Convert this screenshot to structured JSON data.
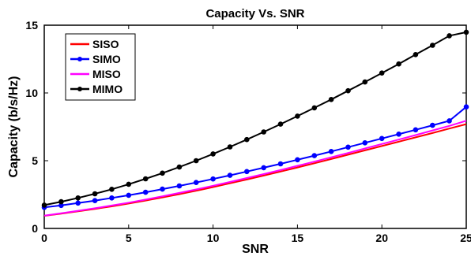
{
  "chart_data": {
    "type": "line",
    "title": "Capacity Vs. SNR",
    "xlabel": "SNR",
    "ylabel": "Capacity (b/s/Hz)",
    "xlim": [
      0,
      25
    ],
    "ylim": [
      0,
      15
    ],
    "xticks": [
      0,
      5,
      10,
      15,
      20,
      25
    ],
    "yticks": [
      0,
      5,
      10,
      15
    ],
    "legend_position": "top-left",
    "grid": false,
    "x": [
      0,
      1,
      2,
      3,
      4,
      5,
      6,
      7,
      8,
      9,
      10,
      11,
      12,
      13,
      14,
      15,
      16,
      17,
      18,
      19,
      20,
      21,
      22,
      23,
      24,
      25
    ],
    "series": [
      {
        "name": "SISO",
        "color": "#ff0000",
        "marker": "none",
        "values": [
          0.93,
          1.09,
          1.26,
          1.44,
          1.63,
          1.84,
          2.06,
          2.29,
          2.53,
          2.78,
          3.05,
          3.33,
          3.61,
          3.9,
          4.2,
          4.5,
          4.81,
          5.12,
          5.44,
          5.76,
          6.08,
          6.4,
          6.72,
          7.04,
          7.37,
          7.7
        ]
      },
      {
        "name": "SIMO",
        "color": "#0000ff",
        "marker": "circle",
        "values": [
          1.55,
          1.7,
          1.87,
          2.05,
          2.25,
          2.45,
          2.67,
          2.9,
          3.14,
          3.39,
          3.65,
          3.92,
          4.2,
          4.48,
          4.77,
          5.07,
          5.37,
          5.68,
          6.0,
          6.32,
          6.64,
          6.96,
          7.28,
          7.61,
          7.94,
          8.97
        ]
      },
      {
        "name": "MISO",
        "color": "#ff00ff",
        "marker": "none",
        "values": [
          0.95,
          1.12,
          1.3,
          1.49,
          1.69,
          1.9,
          2.13,
          2.37,
          2.62,
          2.88,
          3.15,
          3.43,
          3.72,
          4.01,
          4.31,
          4.62,
          4.93,
          5.25,
          5.57,
          5.9,
          6.23,
          6.56,
          6.89,
          7.23,
          7.57,
          7.95
        ]
      },
      {
        "name": "MIMO",
        "color": "#000000",
        "marker": "circle",
        "values": [
          1.72,
          1.97,
          2.25,
          2.56,
          2.89,
          3.26,
          3.66,
          4.08,
          4.53,
          5.0,
          5.5,
          6.02,
          6.56,
          7.12,
          7.7,
          8.29,
          8.9,
          9.52,
          10.16,
          10.81,
          11.47,
          12.14,
          12.83,
          13.52,
          14.22,
          14.48
        ]
      }
    ]
  }
}
